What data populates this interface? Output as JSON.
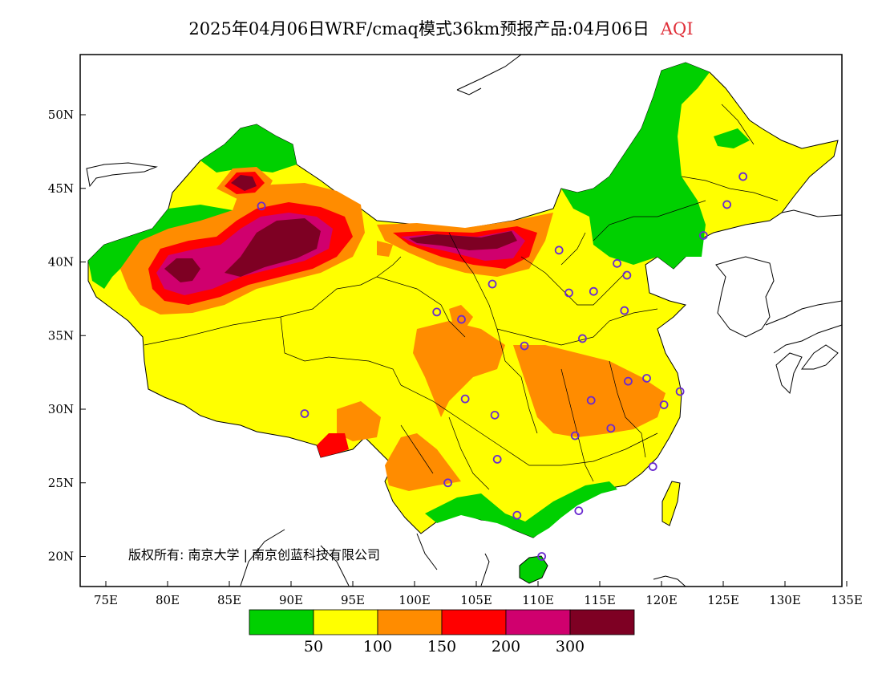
{
  "title": {
    "text": "2025年04月06日WRF/cmaq模式36km预报产品:04月06日",
    "variable": "AQI",
    "variable_color": "#e0303a"
  },
  "axes": {
    "x_ticks": [
      "75E",
      "80E",
      "85E",
      "90E",
      "95E",
      "100E",
      "105E",
      "110E",
      "115E",
      "120E",
      "125E",
      "130E",
      "135E"
    ],
    "y_ticks": [
      "50N",
      "45N",
      "40N",
      "35N",
      "30N",
      "25N",
      "20N"
    ],
    "lon_range": [
      73,
      135
    ],
    "lat_range": [
      18,
      54
    ]
  },
  "copyright": "版权所有: 南京大学 | 南京创蓝科技有限公司",
  "legend": {
    "colors": [
      "#00d000",
      "#ffff00",
      "#ff8c00",
      "#ff0000",
      "#d0006e",
      "#7e0023"
    ],
    "labels": [
      "50",
      "100",
      "150",
      "200",
      "300"
    ]
  },
  "stations": [
    {
      "lon": 87.6,
      "lat": 43.8
    },
    {
      "lon": 91.1,
      "lat": 29.7
    },
    {
      "lon": 101.8,
      "lat": 36.6
    },
    {
      "lon": 103.8,
      "lat": 36.1
    },
    {
      "lon": 106.3,
      "lat": 38.5
    },
    {
      "lon": 111.7,
      "lat": 40.8
    },
    {
      "lon": 112.5,
      "lat": 37.9
    },
    {
      "lon": 114.5,
      "lat": 38.0
    },
    {
      "lon": 116.4,
      "lat": 39.9
    },
    {
      "lon": 117.2,
      "lat": 39.1
    },
    {
      "lon": 123.4,
      "lat": 41.8
    },
    {
      "lon": 125.3,
      "lat": 43.9
    },
    {
      "lon": 126.6,
      "lat": 45.8
    },
    {
      "lon": 117.0,
      "lat": 36.7
    },
    {
      "lon": 113.6,
      "lat": 34.8
    },
    {
      "lon": 108.9,
      "lat": 34.3
    },
    {
      "lon": 104.1,
      "lat": 30.7
    },
    {
      "lon": 106.5,
      "lat": 29.6
    },
    {
      "lon": 114.3,
      "lat": 30.6
    },
    {
      "lon": 117.3,
      "lat": 31.9
    },
    {
      "lon": 118.8,
      "lat": 32.1
    },
    {
      "lon": 121.5,
      "lat": 31.2
    },
    {
      "lon": 120.2,
      "lat": 30.3
    },
    {
      "lon": 115.9,
      "lat": 28.7
    },
    {
      "lon": 113.0,
      "lat": 28.2
    },
    {
      "lon": 119.3,
      "lat": 26.1
    },
    {
      "lon": 106.7,
      "lat": 26.6
    },
    {
      "lon": 102.7,
      "lat": 25.0
    },
    {
      "lon": 108.3,
      "lat": 22.8
    },
    {
      "lon": 113.3,
      "lat": 23.1
    },
    {
      "lon": 110.3,
      "lat": 20.0
    }
  ]
}
